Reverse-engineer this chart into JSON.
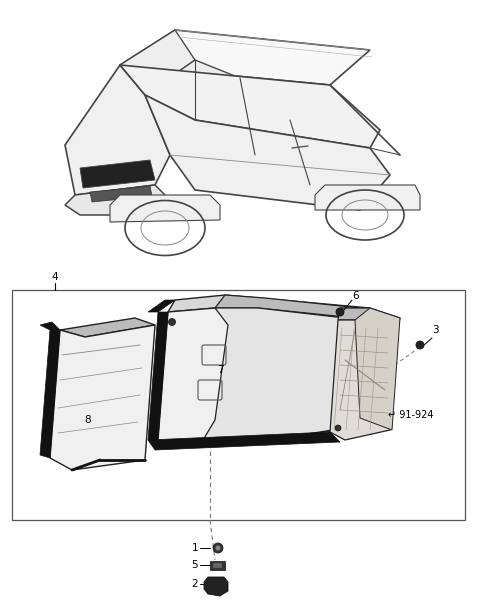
{
  "bg_color": "#ffffff",
  "fig_width": 4.8,
  "fig_height": 6.1,
  "dpi": 100,
  "box_color": "#000000",
  "line_color": "#000000",
  "text_color": "#000000",
  "font_size": 7.5,
  "car_outline_color": "#444444",
  "part_edge_color": "#222222",
  "part_fill_light": "#f0f0f0",
  "part_fill_mid": "#d8d8d8",
  "part_fill_dark": "#bbbbbb",
  "black_seal": "#111111"
}
